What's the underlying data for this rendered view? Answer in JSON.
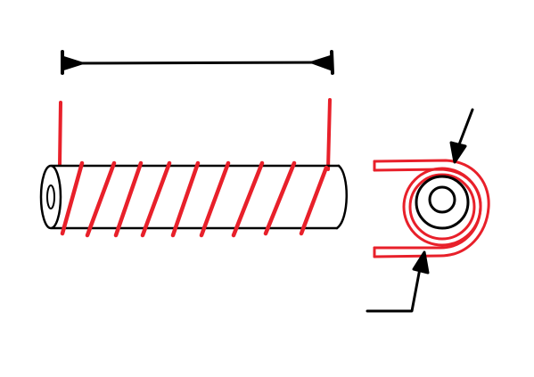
{
  "colors": {
    "ink": "#000000",
    "coil": "#e8202a",
    "background": "#ffffff"
  },
  "diagram": {
    "elements": [
      "dimension-arrow",
      "cylindrical-core",
      "helical-winding",
      "winding-end-view",
      "pointer-arrows"
    ]
  }
}
